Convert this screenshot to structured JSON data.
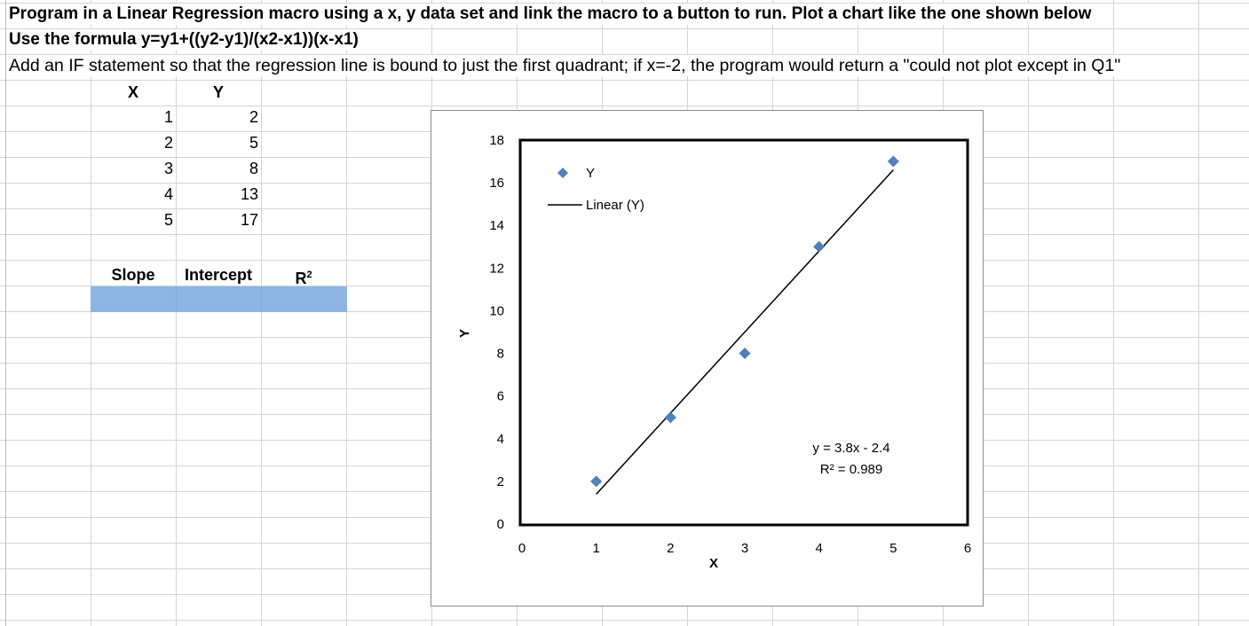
{
  "instructions": {
    "line1": "Program in a Linear Regression macro using a x, y data set and link the macro to a button to run. Plot a chart like the one shown below",
    "line2": "Use the formula y=y1+((y2-y1)/(x2-x1))(x-x1)",
    "line3": "Add an IF statement so that the regression line is bound to just the first quadrant; if x=-2, the program would return a \"could not plot except in Q1\""
  },
  "table": {
    "header_x": "X",
    "header_y": "Y",
    "rows": [
      {
        "x": "1",
        "y": "2"
      },
      {
        "x": "2",
        "y": "5"
      },
      {
        "x": "3",
        "y": "8"
      },
      {
        "x": "4",
        "y": "13"
      },
      {
        "x": "5",
        "y": "17"
      }
    ]
  },
  "results": {
    "slope_label": "Slope",
    "intercept_label": "Intercept",
    "r2_label": "R",
    "r2_sup": "2"
  },
  "chart_data": {
    "type": "scatter",
    "x": [
      1,
      2,
      3,
      4,
      5
    ],
    "series": [
      {
        "name": "Y",
        "values": [
          2,
          5,
          8,
          13,
          17
        ],
        "color": "#4f81bd",
        "marker": "diamond"
      },
      {
        "name": "Linear (Y)",
        "type": "line",
        "slope": 3.8,
        "intercept": -2.4,
        "x_range": [
          1,
          5
        ],
        "color": "#000000"
      }
    ],
    "xlabel": "X",
    "ylabel": "Y",
    "xlim": [
      0,
      6
    ],
    "ylim": [
      0,
      18
    ],
    "x_ticks": [
      "0",
      "1",
      "2",
      "3",
      "4",
      "5",
      "6"
    ],
    "y_ticks": [
      "0",
      "2",
      "4",
      "6",
      "8",
      "10",
      "12",
      "14",
      "16",
      "18"
    ],
    "legend_items": [
      "Y",
      "Linear (Y)"
    ],
    "legend_position": "top-left",
    "equation": "y = 3.8x - 2.4",
    "r2_text": "R² = 0.989",
    "grid": false
  }
}
